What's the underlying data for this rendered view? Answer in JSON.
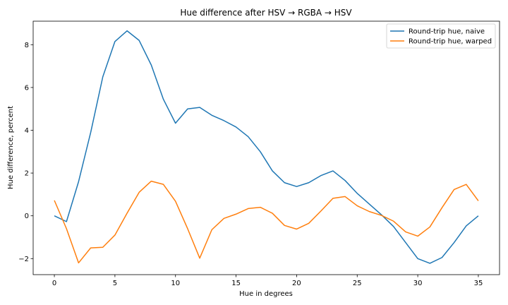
{
  "chart_data": {
    "type": "line",
    "title": "Hue difference after HSV → RGBA → HSV",
    "xlabel": "Hue in degrees",
    "ylabel": "Hue difference, percent",
    "xlim": [
      -1.75,
      36.75
    ],
    "ylim": [
      -2.75,
      9.1
    ],
    "xticks": [
      0,
      5,
      10,
      15,
      20,
      25,
      30,
      35
    ],
    "xtick_labels": [
      "0",
      "5",
      "10",
      "15",
      "20",
      "25",
      "30",
      "35"
    ],
    "yticks": [
      -2,
      0,
      2,
      4,
      6,
      8
    ],
    "ytick_labels": [
      "−2",
      "0",
      "2",
      "4",
      "6",
      "8"
    ],
    "grid": false,
    "legend_position": "top-right",
    "x": [
      0,
      1,
      2,
      3,
      4,
      5,
      6,
      7,
      8,
      9,
      10,
      11,
      12,
      13,
      14,
      15,
      16,
      17,
      18,
      19,
      20,
      21,
      22,
      23,
      24,
      25,
      26,
      27,
      28,
      29,
      30,
      31,
      32,
      33,
      34,
      35
    ],
    "series": [
      {
        "name": "Round-trip hue, naive",
        "color": "#1f77b4",
        "values": [
          0.0,
          -0.27,
          1.6,
          3.9,
          6.5,
          8.15,
          8.65,
          8.2,
          7.05,
          5.45,
          4.33,
          5.0,
          5.07,
          4.7,
          4.45,
          4.15,
          3.7,
          3.0,
          2.1,
          1.55,
          1.37,
          1.55,
          1.88,
          2.1,
          1.65,
          1.05,
          0.55,
          0.05,
          -0.5,
          -1.25,
          -2.0,
          -2.22,
          -1.95,
          -1.25,
          -0.47,
          0.0
        ]
      },
      {
        "name": "Round-trip hue, warped",
        "color": "#ff7f0e",
        "values": [
          0.72,
          -0.6,
          -2.2,
          -1.5,
          -1.47,
          -0.9,
          0.12,
          1.1,
          1.62,
          1.47,
          0.68,
          -0.6,
          -1.98,
          -0.65,
          -0.12,
          0.08,
          0.34,
          0.4,
          0.12,
          -0.45,
          -0.62,
          -0.35,
          0.22,
          0.82,
          0.9,
          0.47,
          0.2,
          0.02,
          -0.25,
          -0.75,
          -0.95,
          -0.52,
          0.38,
          1.23,
          1.47,
          0.7
        ]
      }
    ]
  }
}
